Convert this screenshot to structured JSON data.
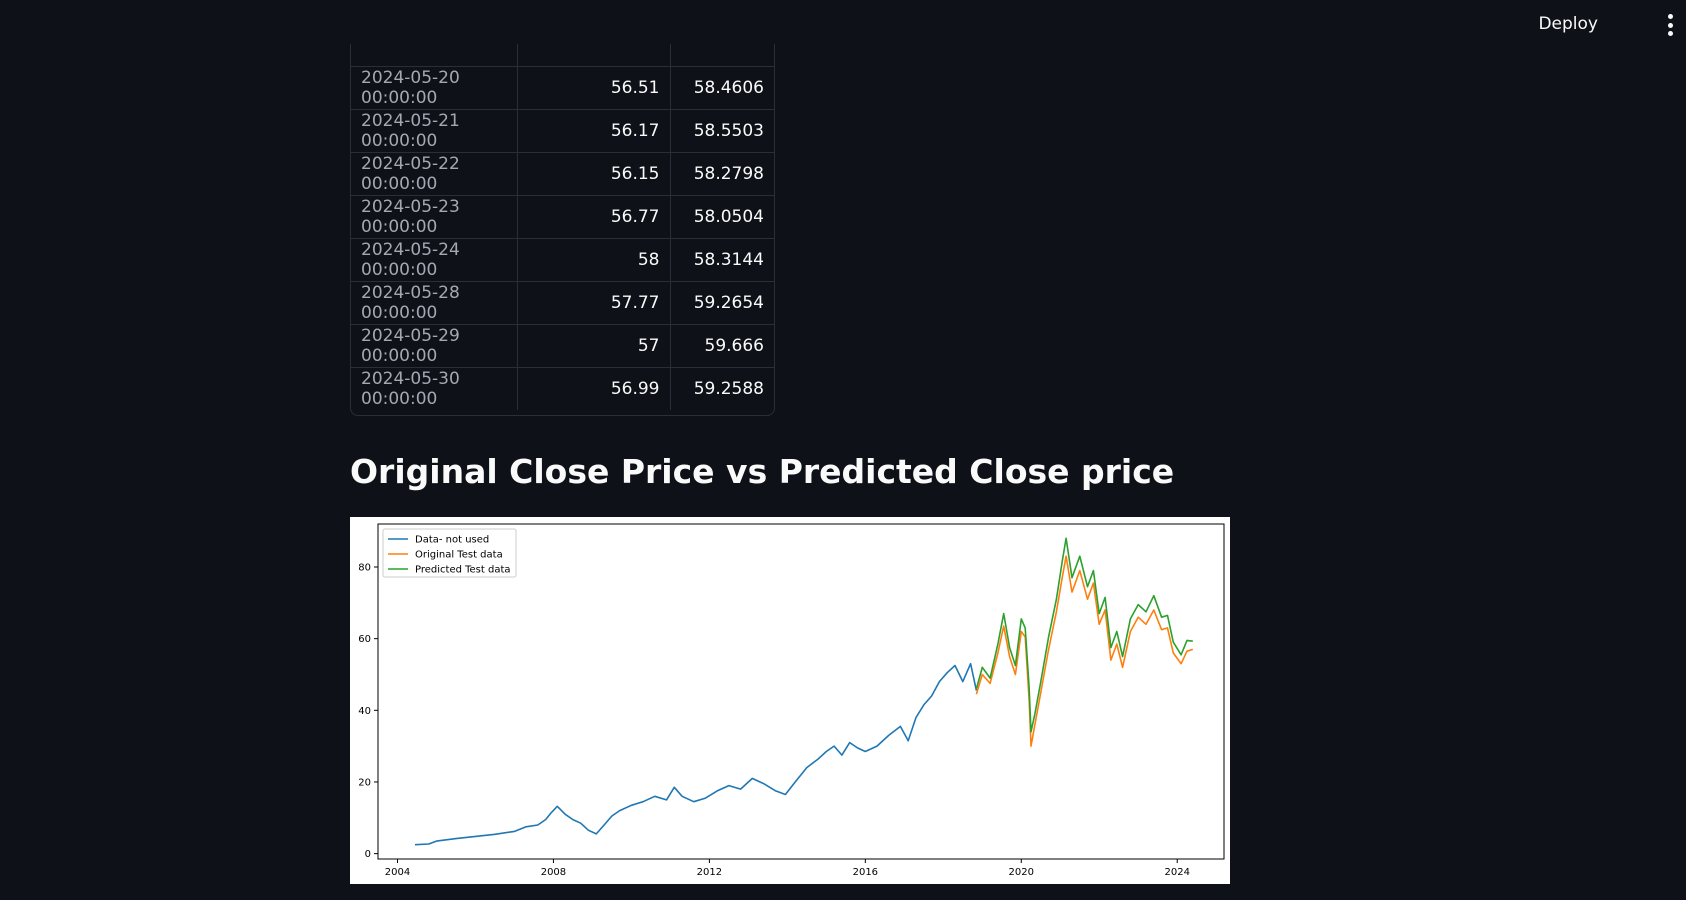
{
  "header": {
    "deploy_label": "Deploy",
    "menu_icon": "vertical-ellipsis-icon"
  },
  "table": {
    "rows": [
      {
        "index": "2024-05-20 00:00:00",
        "original": "56.51",
        "predicted": "58.4606"
      },
      {
        "index": "2024-05-21 00:00:00",
        "original": "56.17",
        "predicted": "58.5503"
      },
      {
        "index": "2024-05-22 00:00:00",
        "original": "56.15",
        "predicted": "58.2798"
      },
      {
        "index": "2024-05-23 00:00:00",
        "original": "56.77",
        "predicted": "58.0504"
      },
      {
        "index": "2024-05-24 00:00:00",
        "original": "58",
        "predicted": "58.3144"
      },
      {
        "index": "2024-05-28 00:00:00",
        "original": "57.77",
        "predicted": "59.2654"
      },
      {
        "index": "2024-05-29 00:00:00",
        "original": "57",
        "predicted": "59.666"
      },
      {
        "index": "2024-05-30 00:00:00",
        "original": "56.99",
        "predicted": "59.2588"
      }
    ]
  },
  "section_title": "Original Close Price vs Predicted Close price",
  "chart_data": {
    "type": "line",
    "title": "",
    "xlabel": "",
    "ylabel": "",
    "xlim": [
      2003.5,
      2025.2
    ],
    "ylim": [
      -1.5,
      92
    ],
    "xticks": [
      "2004",
      "2008",
      "2012",
      "2016",
      "2020",
      "2024"
    ],
    "yticks": [
      "0",
      "20",
      "40",
      "60",
      "80"
    ],
    "legend_position": "top-left",
    "grid": false,
    "series": [
      {
        "name": "Data- not used",
        "color": "#1f77b4",
        "x": [
          2004.45,
          2004.8,
          2005.0,
          2005.5,
          2006.0,
          2006.5,
          2007.0,
          2007.3,
          2007.6,
          2007.8,
          2007.95,
          2008.1,
          2008.3,
          2008.5,
          2008.7,
          2008.9,
          2009.1,
          2009.3,
          2009.5,
          2009.7,
          2010.0,
          2010.3,
          2010.6,
          2010.9,
          2011.1,
          2011.3,
          2011.6,
          2011.9,
          2012.2,
          2012.5,
          2012.8,
          2013.1,
          2013.4,
          2013.7,
          2013.95,
          2014.2,
          2014.5,
          2014.8,
          2015.0,
          2015.2,
          2015.4,
          2015.6,
          2015.8,
          2016.0,
          2016.3,
          2016.6,
          2016.9,
          2017.1,
          2017.3,
          2017.5,
          2017.7,
          2017.9,
          2018.1,
          2018.3,
          2018.5,
          2018.7,
          2018.85
        ],
        "y": [
          2.5,
          2.7,
          3.5,
          4.2,
          4.8,
          5.4,
          6.2,
          7.5,
          8.0,
          9.5,
          11.5,
          13.2,
          11.0,
          9.5,
          8.5,
          6.5,
          5.5,
          8.0,
          10.5,
          12.0,
          13.5,
          14.5,
          16.0,
          15.0,
          18.5,
          16.0,
          14.5,
          15.5,
          17.5,
          19.0,
          18.0,
          21.0,
          19.5,
          17.5,
          16.5,
          20.0,
          24.0,
          26.5,
          28.5,
          30.0,
          27.5,
          31.0,
          29.5,
          28.5,
          30.0,
          33.0,
          35.5,
          31.5,
          38.0,
          41.5,
          44.0,
          48.0,
          50.5,
          52.5,
          48.0,
          53.0,
          45.5
        ]
      },
      {
        "name": "Original Test data",
        "color": "#ff7f0e",
        "x": [
          2018.85,
          2019.0,
          2019.2,
          2019.4,
          2019.55,
          2019.7,
          2019.85,
          2020.0,
          2020.1,
          2020.2,
          2020.25,
          2020.35,
          2020.5,
          2020.7,
          2020.9,
          2021.05,
          2021.15,
          2021.3,
          2021.5,
          2021.7,
          2021.85,
          2022.0,
          2022.15,
          2022.3,
          2022.45,
          2022.6,
          2022.8,
          2023.0,
          2023.2,
          2023.4,
          2023.6,
          2023.75,
          2023.9,
          2024.1,
          2024.25,
          2024.4
        ],
        "y": [
          44.5,
          50.0,
          47.5,
          56.0,
          63.5,
          55.0,
          50.0,
          62.0,
          60.5,
          43.0,
          30.0,
          36.0,
          45.0,
          57.0,
          67.5,
          77.0,
          83.0,
          73.0,
          79.0,
          71.0,
          75.5,
          64.0,
          68.0,
          54.0,
          58.5,
          52.0,
          62.0,
          66.0,
          64.0,
          68.0,
          62.5,
          63.0,
          56.0,
          53.0,
          56.5,
          57.0
        ]
      },
      {
        "name": "Predicted Test data",
        "color": "#2ca02c",
        "x": [
          2018.85,
          2019.0,
          2019.2,
          2019.4,
          2019.55,
          2019.7,
          2019.85,
          2020.0,
          2020.1,
          2020.2,
          2020.25,
          2020.35,
          2020.5,
          2020.7,
          2020.9,
          2021.05,
          2021.15,
          2021.3,
          2021.5,
          2021.7,
          2021.85,
          2022.0,
          2022.15,
          2022.3,
          2022.45,
          2022.6,
          2022.8,
          2023.0,
          2023.2,
          2023.4,
          2023.6,
          2023.75,
          2023.9,
          2024.1,
          2024.25,
          2024.4
        ],
        "y": [
          46.0,
          52.0,
          49.0,
          58.5,
          67.0,
          57.5,
          52.5,
          65.5,
          63.0,
          46.5,
          34.0,
          39.0,
          48.0,
          60.5,
          71.0,
          81.5,
          88.0,
          77.0,
          83.0,
          74.5,
          79.0,
          67.0,
          71.5,
          57.5,
          62.0,
          55.0,
          65.5,
          69.5,
          67.5,
          72.0,
          66.0,
          66.5,
          59.0,
          55.5,
          59.5,
          59.3
        ]
      }
    ]
  }
}
